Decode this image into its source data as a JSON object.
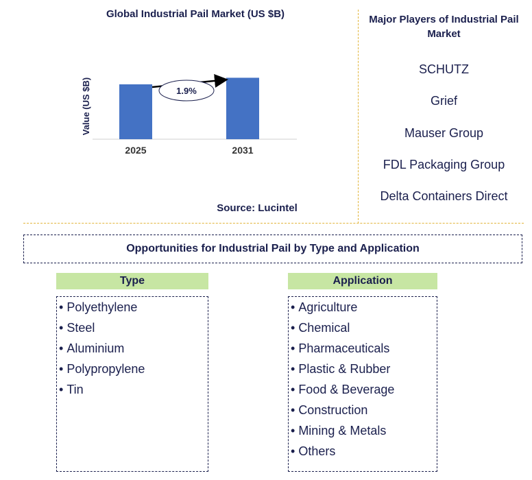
{
  "chart_data": {
    "type": "bar",
    "title": "Global Industrial Pail Market (US $B)",
    "ylabel": "Value (US $B)",
    "xlabel": "",
    "categories": [
      "2025",
      "2031"
    ],
    "values": [
      1.0,
      1.12
    ],
    "ylim": [
      0,
      1.2
    ],
    "annotation": "1.9%",
    "bar_color": "#4472c4"
  },
  "source": "Source: Lucintel",
  "players": {
    "title": "Major Players of Industrial Pail Market",
    "items": [
      "SCHUTZ",
      "Grief",
      "Mauser Group",
      "FDL Packaging Group",
      "Delta Containers Direct"
    ]
  },
  "opportunities": {
    "title": "Opportunities for Industrial Pail by Type and Application",
    "type_header": "Type",
    "type_items": [
      "Polyethylene",
      "Steel",
      "Aluminium",
      "Polypropylene",
      "Tin"
    ],
    "app_header": "Application",
    "app_items": [
      "Agriculture",
      "Chemical",
      "Pharmaceuticals",
      "Plastic & Rubber",
      "Food & Beverage",
      "Construction",
      "Mining & Metals",
      "Others"
    ],
    "bullet": "•"
  },
  "colors": {
    "text": "#1a1f4d",
    "header_fill": "#c7e6a3",
    "divider": "#e2b53a"
  }
}
